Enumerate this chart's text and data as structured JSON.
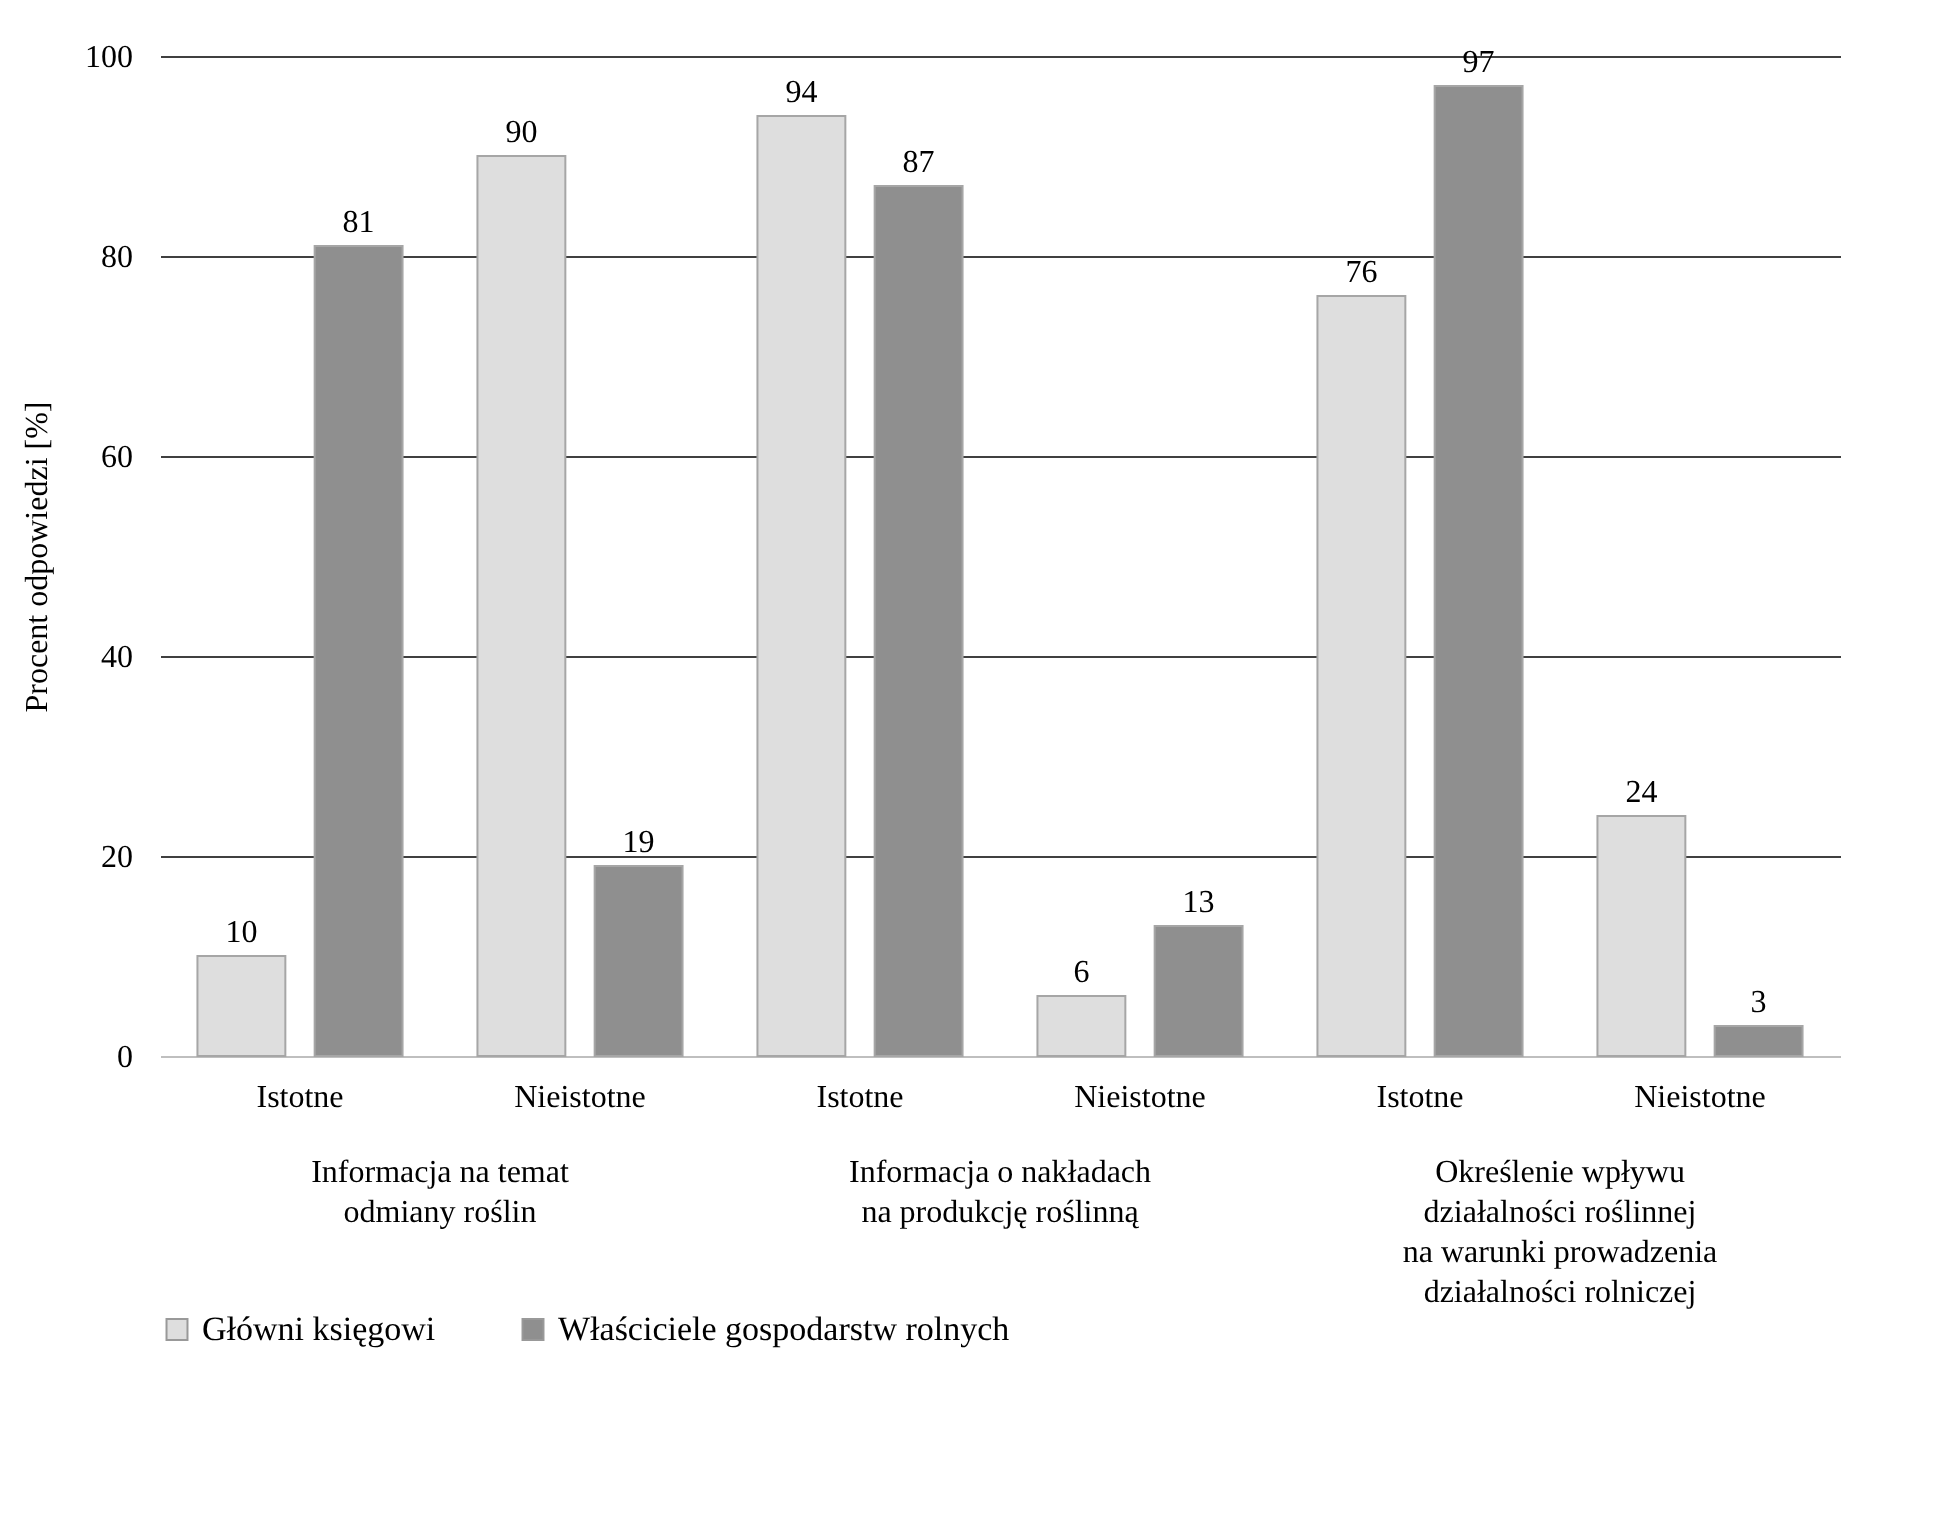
{
  "chart_data": {
    "type": "bar",
    "ylabel": "Procent odpowiedzi [%]",
    "categories": [
      "Istotne",
      "Nieistotne",
      "Istotne",
      "Nieistotne",
      "Istotne",
      "Nieistotne"
    ],
    "series": [
      {
        "name": "Główni księgowi",
        "color": "#dedede",
        "values": [
          10,
          90,
          94,
          6,
          76,
          24
        ]
      },
      {
        "name": "Właściciele gospodarstw rolnych",
        "color": "#8f8f8f",
        "values": [
          81,
          19,
          87,
          13,
          97,
          3
        ]
      }
    ],
    "annotations": [
      "Informacja na temat\nodmiany roślin",
      "Informacja o nakładach\nna produkcję roślinną",
      "Określenie wpływu\ndziałalności roślinnej\nna warunki prowadzenia\ndziałalności rolniczej"
    ],
    "ylim": [
      0,
      100
    ],
    "yticks": [
      0,
      20,
      40,
      60,
      80,
      100
    ],
    "grid": "y",
    "legend": "bottom",
    "data_labels": true
  }
}
